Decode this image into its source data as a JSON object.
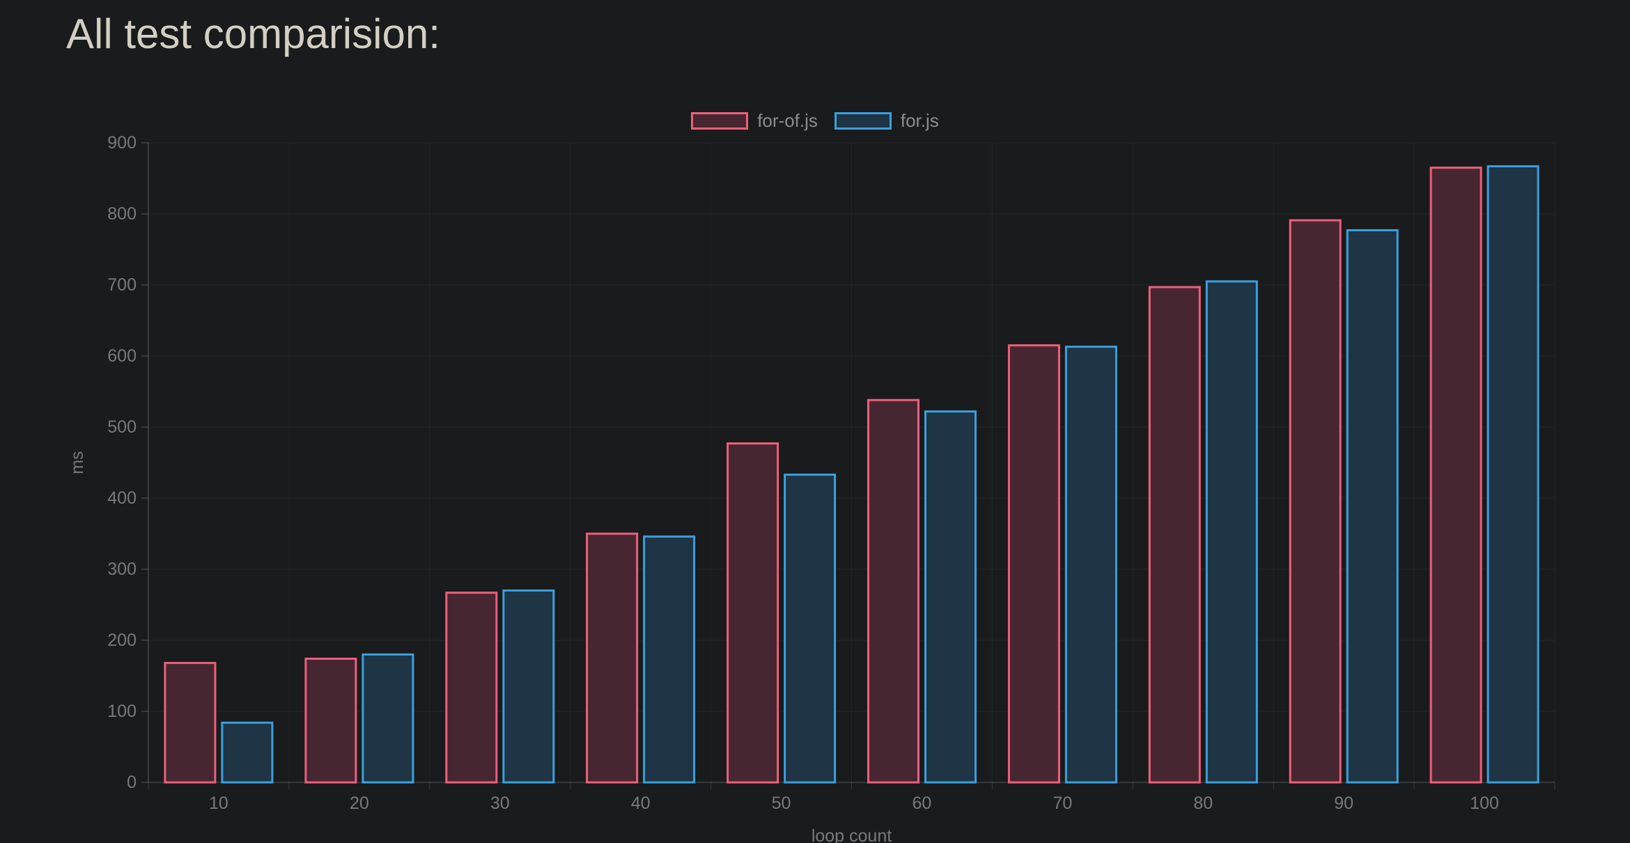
{
  "page": {
    "title": "All test comparision:"
  },
  "chart_data": {
    "type": "bar",
    "title": "All test comparision:",
    "categories": [
      "10",
      "20",
      "30",
      "40",
      "50",
      "60",
      "70",
      "80",
      "90",
      "100"
    ],
    "series": [
      {
        "name": "for-of.js",
        "border_color": "#ee5f7d",
        "fill_color": "#462731",
        "values": [
          168,
          174,
          267,
          350,
          477,
          538,
          615,
          697,
          791,
          865
        ]
      },
      {
        "name": "for.js",
        "border_color": "#3ba0dd",
        "fill_color": "#1f3444",
        "values": [
          84,
          180,
          270,
          346,
          433,
          522,
          613,
          705,
          777,
          867
        ]
      }
    ],
    "xlabel": "loop count",
    "ylabel": "ms",
    "ylim": [
      0,
      900
    ],
    "y_ticks": [
      0,
      100,
      200,
      300,
      400,
      500,
      600,
      700,
      800,
      900
    ],
    "grid": true,
    "legend_position": "top",
    "background_color": "#1a1b1d",
    "tick_text_color": "#77797c",
    "axis_title_color": "#77797c",
    "legend_text_color": "#8b8d8f",
    "title_color": "#d3cfc4"
  }
}
